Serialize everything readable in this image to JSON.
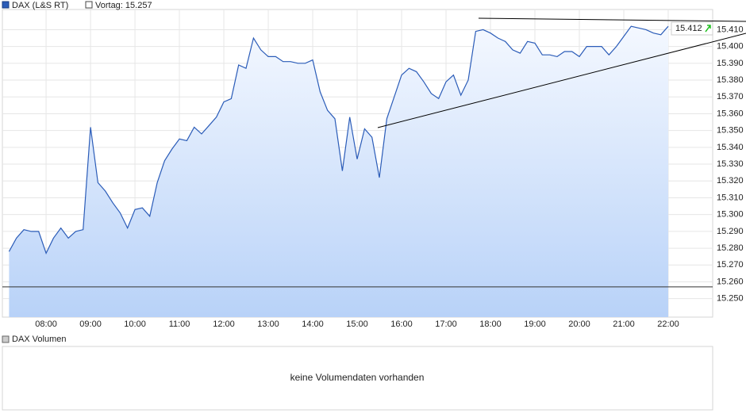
{
  "chart_data": {
    "type": "area",
    "series": [
      {
        "name": "DAX (L&S RT)",
        "color": "#2b5cb8",
        "values": [
          15.278,
          15.286,
          15.291,
          15.29,
          15.29,
          15.277,
          15.286,
          15.292,
          15.286,
          15.29,
          15.291,
          15.352,
          15.319,
          15.314,
          15.307,
          15.301,
          15.292,
          15.303,
          15.304,
          15.299,
          15.319,
          15.332,
          15.339,
          15.345,
          15.344,
          15.352,
          15.348,
          15.353,
          15.358,
          15.367,
          15.369,
          15.389,
          15.387,
          15.405,
          15.398,
          15.394,
          15.394,
          15.391,
          15.391,
          15.39,
          15.39,
          15.392,
          15.373,
          15.362,
          15.357,
          15.326,
          15.358,
          15.333,
          15.351,
          15.346,
          15.322,
          15.357,
          15.37,
          15.383,
          15.387,
          15.385,
          15.379,
          15.372,
          15.369,
          15.379,
          15.383,
          15.371,
          15.38,
          15.409,
          15.41,
          15.408,
          15.405,
          15.403,
          15.398,
          15.396,
          15.403,
          15.402,
          15.395,
          15.395,
          15.394,
          15.397,
          15.397,
          15.394,
          15.4,
          15.4,
          15.4,
          15.395,
          15.4,
          15.406,
          15.412,
          15.411,
          15.41,
          15.408,
          15.407,
          15.412
        ]
      }
    ],
    "x": [
      430,
      440,
      450,
      460,
      470,
      480,
      490,
      500,
      510,
      520,
      530,
      540,
      550,
      560,
      570,
      580,
      590,
      600,
      610,
      620,
      630,
      640,
      650,
      660,
      670,
      680,
      690,
      700,
      710,
      720,
      730,
      740,
      750,
      760,
      770,
      780,
      790,
      800,
      810,
      820,
      830,
      840,
      850,
      860,
      870,
      880,
      890,
      900,
      910,
      920,
      930,
      940,
      950,
      960,
      970,
      980,
      990,
      1000,
      1010,
      1020,
      1030,
      1040,
      1050,
      1060,
      1070,
      1080,
      1090,
      1100,
      1110,
      1120,
      1130,
      1140,
      1150,
      1160,
      1170,
      1180,
      1190,
      1200,
      1210,
      1220,
      1230,
      1240,
      1250,
      1260,
      1270,
      1280,
      1290,
      1300,
      1310,
      1320
    ],
    "xlim": [
      421,
      1380
    ],
    "xticks": [
      {
        "value": 480,
        "label": "08:00"
      },
      {
        "value": 540,
        "label": "09:00"
      },
      {
        "value": 600,
        "label": "10:00"
      },
      {
        "value": 660,
        "label": "11:00"
      },
      {
        "value": 720,
        "label": "12:00"
      },
      {
        "value": 780,
        "label": "13:00"
      },
      {
        "value": 840,
        "label": "14:00"
      },
      {
        "value": 900,
        "label": "15:00"
      },
      {
        "value": 960,
        "label": "16:00"
      },
      {
        "value": 1020,
        "label": "17:00"
      },
      {
        "value": 1080,
        "label": "18:00"
      },
      {
        "value": 1140,
        "label": "19:00"
      },
      {
        "value": 1200,
        "label": "20:00"
      },
      {
        "value": 1260,
        "label": "21:00"
      },
      {
        "value": 1320,
        "label": "22:00"
      }
    ],
    "ylim": [
      15.239,
      15.422
    ],
    "yticks": [
      {
        "value": 15.25,
        "label": "15.250"
      },
      {
        "value": 15.26,
        "label": "15.260"
      },
      {
        "value": 15.27,
        "label": "15.270"
      },
      {
        "value": 15.28,
        "label": "15.280"
      },
      {
        "value": 15.29,
        "label": "15.290"
      },
      {
        "value": 15.3,
        "label": "15.300"
      },
      {
        "value": 15.31,
        "label": "15.310"
      },
      {
        "value": 15.32,
        "label": "15.320"
      },
      {
        "value": 15.33,
        "label": "15.330"
      },
      {
        "value": 15.34,
        "label": "15.340"
      },
      {
        "value": 15.35,
        "label": "15.350"
      },
      {
        "value": 15.36,
        "label": "15.360"
      },
      {
        "value": 15.37,
        "label": "15.370"
      },
      {
        "value": 15.38,
        "label": "15.380"
      },
      {
        "value": 15.39,
        "label": "15.390"
      },
      {
        "value": 15.4,
        "label": "15.400"
      },
      {
        "value": 15.41,
        "label": "15.410"
      }
    ],
    "grid": true,
    "reference": {
      "label": "Vortag: 15.257",
      "value": 15.257
    },
    "volume_panel": {
      "legend": "DAX Volumen",
      "message": "keine Volumendaten vorhanden"
    }
  }
}
